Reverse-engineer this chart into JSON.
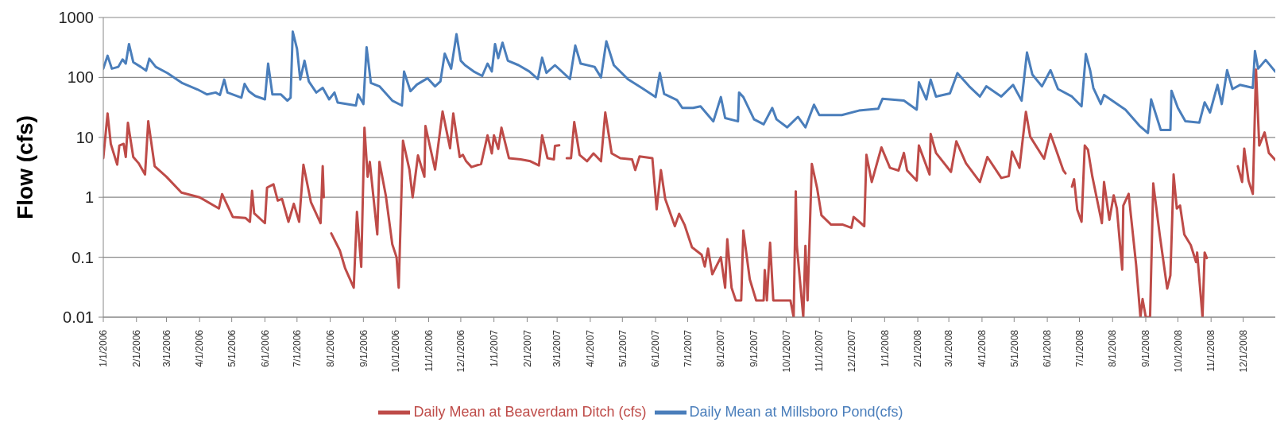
{
  "chart_data": {
    "type": "line",
    "ylabel": "Flow (cfs)",
    "log": "y",
    "grid": "y",
    "legend": "bottom",
    "marker": "none",
    "xlim": [
      "2006-01-01",
      "2008-12-31"
    ],
    "xticks": [
      {
        "value": "2006-01-01",
        "label": "1/1/2006"
      },
      {
        "value": "2006-02-01",
        "label": "2/1/2006"
      },
      {
        "value": "2006-03-01",
        "label": "3/1/2006"
      },
      {
        "value": "2006-04-01",
        "label": "4/1/2006"
      },
      {
        "value": "2006-05-01",
        "label": "5/1/2006"
      },
      {
        "value": "2006-06-01",
        "label": "6/1/2006"
      },
      {
        "value": "2006-07-01",
        "label": "7/1/2006"
      },
      {
        "value": "2006-08-01",
        "label": "8/1/2006"
      },
      {
        "value": "2006-09-01",
        "label": "9/1/2006"
      },
      {
        "value": "2006-10-01",
        "label": "10/1/2006"
      },
      {
        "value": "2006-11-01",
        "label": "11/1/2006"
      },
      {
        "value": "2006-12-01",
        "label": "12/1/2006"
      },
      {
        "value": "2007-01-01",
        "label": "1/1/2007"
      },
      {
        "value": "2007-02-01",
        "label": "2/1/2007"
      },
      {
        "value": "2007-03-01",
        "label": "3/1/2007"
      },
      {
        "value": "2007-04-01",
        "label": "4/1/2007"
      },
      {
        "value": "2007-05-01",
        "label": "5/1/2007"
      },
      {
        "value": "2007-06-01",
        "label": "6/1/2007"
      },
      {
        "value": "2007-07-01",
        "label": "7/1/2007"
      },
      {
        "value": "2007-08-01",
        "label": "8/1/2007"
      },
      {
        "value": "2007-09-01",
        "label": "9/1/2007"
      },
      {
        "value": "2007-10-01",
        "label": "10/1/2007"
      },
      {
        "value": "2007-11-01",
        "label": "11/1/2007"
      },
      {
        "value": "2007-12-01",
        "label": "12/1/2007"
      },
      {
        "value": "2008-01-01",
        "label": "1/1/2008"
      },
      {
        "value": "2008-02-01",
        "label": "2/1/2008"
      },
      {
        "value": "2008-03-01",
        "label": "3/1/2008"
      },
      {
        "value": "2008-04-01",
        "label": "4/1/2008"
      },
      {
        "value": "2008-05-01",
        "label": "5/1/2008"
      },
      {
        "value": "2008-06-01",
        "label": "6/1/2008"
      },
      {
        "value": "2008-07-01",
        "label": "7/1/2008"
      },
      {
        "value": "2008-08-01",
        "label": "8/1/2008"
      },
      {
        "value": "2008-09-01",
        "label": "9/1/2008"
      },
      {
        "value": "2008-10-01",
        "label": "10/1/2008"
      },
      {
        "value": "2008-11-01",
        "label": "11/1/2008"
      },
      {
        "value": "2008-12-01",
        "label": "12/1/2008"
      }
    ],
    "ylim": [
      0.01,
      1000
    ],
    "yticks": [
      0.01,
      0.1,
      1,
      10,
      100,
      1000
    ],
    "series": [
      {
        "name": "Daily Mean at Millsboro Pond(cfs)",
        "color": "#4a7ebb",
        "x": [
          "2006-01-01",
          "2006-01-05",
          "2006-01-09",
          "2006-01-15",
          "2006-01-19",
          "2006-01-22",
          "2006-01-25",
          "2006-01-29",
          "2006-02-05",
          "2006-02-10",
          "2006-02-13",
          "2006-02-19",
          "2006-03-02",
          "2006-03-16",
          "2006-03-30",
          "2006-04-08",
          "2006-04-16",
          "2006-04-20",
          "2006-04-24",
          "2006-04-27",
          "2006-05-10",
          "2006-05-13",
          "2006-05-17",
          "2006-05-23",
          "2006-06-01",
          "2006-06-04",
          "2006-06-08",
          "2006-06-16",
          "2006-06-22",
          "2006-06-25",
          "2006-06-27",
          "2006-07-01",
          "2006-07-04",
          "2006-07-08",
          "2006-07-12",
          "2006-07-19",
          "2006-07-25",
          "2006-07-31",
          "2006-08-05",
          "2006-08-08",
          "2006-08-25",
          "2006-08-27",
          "2006-09-01",
          "2006-09-04",
          "2006-09-08",
          "2006-09-16",
          "2006-09-28",
          "2006-10-07",
          "2006-10-09",
          "2006-10-15",
          "2006-10-21",
          "2006-10-31",
          "2006-11-07",
          "2006-11-12",
          "2006-11-16",
          "2006-11-22",
          "2006-11-27",
          "2006-12-01",
          "2006-12-05",
          "2006-12-13",
          "2006-12-21",
          "2006-12-26",
          "2006-12-30",
          "2007-01-02",
          "2007-01-05",
          "2007-01-09",
          "2007-01-14",
          "2007-01-24",
          "2007-02-03",
          "2007-02-11",
          "2007-02-15",
          "2007-02-19",
          "2007-02-27",
          "2007-03-13",
          "2007-03-18",
          "2007-03-23",
          "2007-04-05",
          "2007-04-11",
          "2007-04-16",
          "2007-04-23",
          "2007-05-06",
          "2007-05-19",
          "2007-06-01",
          "2007-06-05",
          "2007-06-09",
          "2007-06-21",
          "2007-06-26",
          "2007-07-06",
          "2007-07-13",
          "2007-07-25",
          "2007-08-01",
          "2007-08-05",
          "2007-08-17",
          "2007-08-18",
          "2007-08-22",
          "2007-09-01",
          "2007-09-10",
          "2007-09-18",
          "2007-09-22",
          "2007-10-02",
          "2007-10-12",
          "2007-10-19",
          "2007-10-27",
          "2007-11-01",
          "2007-11-22",
          "2007-12-08",
          "2007-12-26",
          "2007-12-30",
          "2008-01-19",
          "2008-01-31",
          "2008-02-02",
          "2008-02-09",
          "2008-02-13",
          "2008-02-18",
          "2008-03-02",
          "2008-03-09",
          "2008-03-20",
          "2008-03-30",
          "2008-04-05",
          "2008-04-19",
          "2008-04-30",
          "2008-05-08",
          "2008-05-13",
          "2008-05-18",
          "2008-05-27",
          "2008-06-04",
          "2008-06-11",
          "2008-06-24",
          "2008-07-03",
          "2008-07-07",
          "2008-07-11",
          "2008-07-14",
          "2008-07-21",
          "2008-07-24",
          "2008-08-13",
          "2008-08-26",
          "2008-09-03",
          "2008-09-06",
          "2008-09-15",
          "2008-09-24",
          "2008-09-25",
          "2008-10-01",
          "2008-10-08",
          "2008-10-21",
          "2008-10-26",
          "2008-10-31",
          "2008-11-07",
          "2008-11-11",
          "2008-11-16",
          "2008-11-21",
          "2008-11-28",
          "2008-12-10",
          "2008-12-12",
          "2008-12-15",
          "2008-12-22",
          "2008-12-31"
        ],
        "values": [
          140,
          230,
          140,
          150,
          200,
          170,
          360,
          180,
          150,
          130,
          205,
          150,
          118,
          80,
          63,
          52,
          56,
          51,
          92,
          56,
          46,
          78,
          59,
          49,
          43,
          170,
          52,
          52,
          41,
          46,
          580,
          300,
          92,
          190,
          86,
          56,
          67,
          43,
          56,
          38,
          34,
          52,
          36,
          318,
          81,
          71,
          41,
          34,
          125,
          59,
          76,
          97,
          71,
          86,
          250,
          140,
          525,
          190,
          160,
          126,
          106,
          170,
          126,
          360,
          210,
          380,
          190,
          160,
          126,
          94,
          213,
          119,
          160,
          94,
          340,
          170,
          150,
          100,
          400,
          160,
          94,
          67,
          47,
          119,
          53,
          42,
          31,
          31,
          33,
          18.5,
          47,
          21,
          18.5,
          56,
          47,
          20,
          16.5,
          31,
          20,
          14.7,
          22,
          14.7,
          35,
          23.5,
          23.5,
          28,
          30,
          44,
          41,
          29,
          83,
          43,
          92,
          48,
          54,
          118,
          71,
          48,
          71,
          48,
          75,
          41,
          260,
          112,
          71,
          132,
          64,
          48,
          33,
          245,
          132,
          67,
          36,
          51,
          29,
          15.7,
          11.8,
          43,
          13.3,
          13.3,
          60,
          31,
          18.6,
          17.6,
          38.5,
          26,
          75,
          36,
          132,
          64,
          75,
          67,
          275,
          140,
          196,
          125
        ]
      },
      {
        "name": "Daily Mean at Beaverdam Ditch (cfs)",
        "color": "#be4b48",
        "x": [
          "2006-01-01",
          "2006-01-05",
          "2006-01-08",
          "2006-01-14",
          "2006-01-16",
          "2006-01-20",
          "2006-01-22",
          "2006-01-24",
          "2006-01-29",
          "2006-02-03",
          "2006-02-09",
          "2006-02-12",
          "2006-02-18",
          "2006-03-01",
          "2006-03-15",
          "2006-04-01",
          "2006-04-19",
          "2006-04-22",
          "2006-05-02",
          "2006-05-14",
          "2006-05-18",
          "2006-05-20",
          "2006-05-22",
          "2006-06-01",
          "2006-06-03",
          "2006-06-09",
          "2006-06-13",
          "2006-06-17",
          "2006-06-23",
          "2006-06-28",
          "2006-07-03",
          "2006-07-07",
          "2006-07-14",
          "2006-07-23",
          "2006-07-25",
          "2006-07-26",
          "2006-07-29",
          "2006-08-02",
          "2006-08-10",
          "2006-08-15",
          "2006-08-23",
          "2006-08-26",
          "2006-08-30",
          "2006-09-02",
          "2006-09-05",
          "2006-09-07",
          "2006-09-14",
          "2006-09-16",
          "2006-09-22",
          "2006-09-28",
          "2006-10-02",
          "2006-10-04",
          "2006-10-08",
          "2006-10-14",
          "2006-10-17",
          "2006-10-22",
          "2006-10-28",
          "2006-10-29",
          "2006-11-07",
          "2006-11-14",
          "2006-11-21",
          "2006-11-24",
          "2006-11-30",
          "2006-12-03",
          "2006-12-06",
          "2006-12-11",
          "2006-12-20",
          "2006-12-26",
          "2006-12-30",
          "2007-01-01",
          "2007-01-05",
          "2007-01-08",
          "2007-01-15",
          "2007-01-26",
          "2007-02-04",
          "2007-02-12",
          "2007-02-15",
          "2007-02-20",
          "2007-02-26",
          "2007-02-27",
          "2007-03-03",
          "2007-03-06",
          "2007-03-10",
          "2007-03-14",
          "2007-03-17",
          "2007-03-22",
          "2007-03-29",
          "2007-04-04",
          "2007-04-11",
          "2007-04-15",
          "2007-04-21",
          "2007-04-29",
          "2007-05-10",
          "2007-05-13",
          "2007-05-17",
          "2007-05-29",
          "2007-06-02",
          "2007-06-06",
          "2007-06-10",
          "2007-06-19",
          "2007-06-23",
          "2007-06-28",
          "2007-07-05",
          "2007-07-14",
          "2007-07-17",
          "2007-07-20",
          "2007-07-24",
          "2007-08-01",
          "2007-08-05",
          "2007-08-07",
          "2007-08-11",
          "2007-08-15",
          "2007-08-20",
          "2007-08-22",
          "2007-08-28",
          "2007-09-03",
          "2007-09-10",
          "2007-09-11",
          "2007-09-13",
          "2007-09-16",
          "2007-09-19",
          "2007-10-05",
          "2007-10-08",
          "2007-10-10",
          "2007-10-11",
          "2007-10-17",
          "2007-10-19",
          "2007-10-21",
          "2007-10-25",
          "2007-10-30",
          "2007-11-03",
          "2007-11-12",
          "2007-11-23",
          "2007-12-01",
          "2007-12-03",
          "2007-12-13",
          "2007-12-15",
          "2007-12-20",
          "2007-12-29",
          "2008-01-06",
          "2008-01-14",
          "2008-01-19",
          "2008-01-22",
          "2008-01-31",
          "2008-02-02",
          "2008-02-12",
          "2008-02-13",
          "2008-02-18",
          "2008-03-03",
          "2008-03-08",
          "2008-03-17",
          "2008-03-30",
          "2008-04-06",
          "2008-04-19",
          "2008-04-26",
          "2008-04-29",
          "2008-05-06",
          "2008-05-12",
          "2008-05-16",
          "2008-05-29",
          "2008-06-02",
          "2008-06-04",
          "2008-06-16",
          "2008-06-18",
          "2008-06-21",
          "2008-06-24",
          "2008-06-26",
          "2008-06-29",
          "2008-07-03",
          "2008-07-06",
          "2008-07-09",
          "2008-07-13",
          "2008-07-22",
          "2008-07-24",
          "2008-07-29",
          "2008-08-02",
          "2008-08-05",
          "2008-08-10",
          "2008-08-11",
          "2008-08-16",
          "2008-08-23",
          "2008-08-27",
          "2008-08-29",
          "2008-09-01",
          "2008-09-05",
          "2008-09-08",
          "2008-09-14",
          "2008-09-21",
          "2008-09-24",
          "2008-09-27",
          "2008-09-30",
          "2008-10-03",
          "2008-10-07",
          "2008-10-13",
          "2008-10-18",
          "2008-10-19",
          "2008-10-24",
          "2008-10-26",
          "2008-10-28",
          "2008-11-10",
          "2008-11-26",
          "2008-11-30",
          "2008-12-02",
          "2008-12-06",
          "2008-12-10",
          "2008-12-13",
          "2008-12-16",
          "2008-12-21",
          "2008-12-25",
          "2008-12-31"
        ],
        "values": [
          4.5,
          25,
          7.8,
          3.5,
          7.3,
          7.8,
          4.7,
          17.5,
          4.7,
          3.7,
          2.4,
          18.6,
          3.3,
          2.2,
          1.2,
          1.0,
          0.65,
          1.13,
          0.47,
          0.45,
          0.39,
          1.28,
          0.54,
          0.37,
          1.45,
          1.65,
          0.88,
          0.94,
          0.39,
          0.78,
          0.39,
          3.5,
          0.83,
          0.37,
          3.3,
          1.0,
          null,
          0.25,
          0.13,
          0.065,
          0.031,
          0.57,
          0.069,
          14.5,
          2.2,
          3.9,
          0.24,
          3.9,
          1.06,
          0.165,
          0.1,
          0.031,
          8.8,
          2.9,
          1.0,
          5.0,
          2.2,
          15.5,
          2.9,
          27,
          6.6,
          25,
          4.7,
          5.1,
          4.0,
          3.2,
          3.6,
          10.8,
          5.4,
          10.8,
          6.4,
          14.5,
          4.5,
          4.3,
          4.0,
          3.4,
          10.8,
          4.5,
          4.3,
          7.2,
          7.4,
          null,
          4.5,
          4.5,
          18,
          5.1,
          4.0,
          5.4,
          4.0,
          26,
          5.4,
          4.5,
          4.3,
          2.85,
          4.8,
          4.5,
          0.63,
          2.85,
          0.94,
          0.33,
          0.53,
          0.35,
          0.147,
          0.11,
          0.07,
          0.139,
          0.052,
          0.1,
          0.031,
          0.2,
          0.031,
          0.019,
          0.019,
          0.28,
          0.043,
          0.019,
          0.019,
          0.061,
          0.019,
          0.175,
          0.019,
          0.019,
          0.01,
          1.26,
          0.155,
          0.01,
          0.155,
          0.019,
          3.6,
          1.4,
          0.5,
          0.35,
          0.35,
          0.31,
          0.47,
          0.33,
          5.1,
          1.8,
          6.8,
          3.1,
          2.8,
          5.5,
          2.8,
          1.9,
          7.3,
          2.4,
          11.4,
          5.5,
          2.65,
          8.6,
          3.7,
          1.8,
          4.7,
          2.1,
          2.25,
          5.8,
          3.1,
          26.6,
          10.3,
          4.4,
          8.6,
          11.4,
          2.8,
          2.5,
          null,
          1.5,
          2.0,
          0.62,
          0.39,
          7.3,
          6.2,
          2.25,
          0.37,
          1.8,
          0.42,
          1.08,
          0.65,
          0.062,
          0.73,
          1.14,
          0.074,
          0.01,
          0.02,
          0.01,
          0.01,
          1.7,
          0.24,
          0.03,
          0.05,
          2.4,
          0.65,
          0.73,
          0.24,
          0.16,
          0.083,
          0.12,
          0.01,
          0.12,
          0.097,
          null,
          3.3,
          1.8,
          6.5,
          1.9,
          1.14,
          135,
          7.3,
          12.1,
          5.5,
          4.2
        ]
      }
    ]
  }
}
